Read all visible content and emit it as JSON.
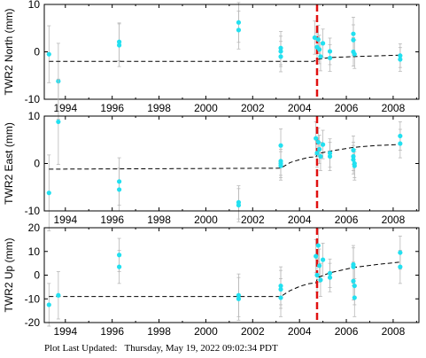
{
  "footer": "Plot Last Updated:   Thursday, May 19, 2022 09:02:34 PDT",
  "colors": {
    "points": "#22e0f0",
    "errorbar": "#b8b8b8",
    "model": "#000000",
    "event": "#e01010",
    "axes": "#000000"
  },
  "chart_data": [
    {
      "type": "scatter",
      "ylabel": "TWR2 North (mm)",
      "xlim": [
        1993.1,
        2009.1
      ],
      "ylim": [
        -10,
        10
      ],
      "xticks": [
        1994,
        1996,
        1998,
        2000,
        2002,
        2004,
        2006,
        2008
      ],
      "yticks": [
        -10,
        0,
        10
      ],
      "event_x": 2004.75,
      "points": [
        {
          "x": 1993.3,
          "y": -0.5,
          "err": 6
        },
        {
          "x": 1993.7,
          "y": -6.2,
          "err": 8
        },
        {
          "x": 1996.3,
          "y": 1.4,
          "err": 4.5
        },
        {
          "x": 1996.3,
          "y": 2.1,
          "err": 4
        },
        {
          "x": 2001.4,
          "y": 6.2,
          "err": 4.2
        },
        {
          "x": 2001.4,
          "y": 4.6,
          "err": 4
        },
        {
          "x": 2003.2,
          "y": 0.8,
          "err": 3.5
        },
        {
          "x": 2003.2,
          "y": -1.0,
          "err": 3.2
        },
        {
          "x": 2003.2,
          "y": 0.1,
          "err": 3.2
        },
        {
          "x": 2004.65,
          "y": 3.0,
          "err": 3.5
        },
        {
          "x": 2004.8,
          "y": 2.6,
          "err": 3
        },
        {
          "x": 2004.85,
          "y": 0.5,
          "err": 3
        },
        {
          "x": 2004.9,
          "y": -1.0,
          "err": 3
        },
        {
          "x": 2005.0,
          "y": 1.8,
          "err": 3
        },
        {
          "x": 2004.75,
          "y": 1.0,
          "err": 3
        },
        {
          "x": 2005.3,
          "y": 0.1,
          "err": 2.8
        },
        {
          "x": 2005.3,
          "y": -1.3,
          "err": 2.8
        },
        {
          "x": 2006.3,
          "y": 3.8,
          "err": 3.5
        },
        {
          "x": 2006.3,
          "y": 2.5,
          "err": 3.2
        },
        {
          "x": 2006.3,
          "y": 0.0,
          "err": 3
        },
        {
          "x": 2006.35,
          "y": -0.5,
          "err": 3
        },
        {
          "x": 2008.3,
          "y": -0.8,
          "err": 2.5
        },
        {
          "x": 2008.3,
          "y": -1.6,
          "err": 2.5
        }
      ],
      "model": [
        [
          1993.3,
          -2.0
        ],
        [
          2004.6,
          -2.0
        ],
        [
          2004.75,
          -1.6
        ],
        [
          2005.3,
          -1.2
        ],
        [
          2006.3,
          -1.0
        ],
        [
          2008.3,
          -0.7
        ]
      ]
    },
    {
      "type": "scatter",
      "ylabel": "TWR2 East (mm)",
      "xlim": [
        1993.1,
        2009.1
      ],
      "ylim": [
        -10,
        10
      ],
      "xticks": [
        1994,
        1996,
        1998,
        2000,
        2002,
        2004,
        2006,
        2008
      ],
      "yticks": [
        -10,
        0,
        10
      ],
      "event_x": 2004.75,
      "points": [
        {
          "x": 1993.3,
          "y": -6.2,
          "err": 8
        },
        {
          "x": 1993.7,
          "y": 8.8,
          "err": 9
        },
        {
          "x": 1996.3,
          "y": -3.8,
          "err": 5
        },
        {
          "x": 1996.3,
          "y": -5.5,
          "err": 4.5
        },
        {
          "x": 2001.4,
          "y": -8.2,
          "err": 3.5
        },
        {
          "x": 2001.4,
          "y": -8.8,
          "err": 3.5
        },
        {
          "x": 2003.2,
          "y": 3.8,
          "err": 3.5
        },
        {
          "x": 2003.2,
          "y": 0.5,
          "err": 3
        },
        {
          "x": 2003.2,
          "y": -0.5,
          "err": 3
        },
        {
          "x": 2003.2,
          "y": 0.0,
          "err": 3
        },
        {
          "x": 2004.7,
          "y": 5.3,
          "err": 3.5
        },
        {
          "x": 2004.8,
          "y": 4.5,
          "err": 3
        },
        {
          "x": 2004.85,
          "y": 3.0,
          "err": 3
        },
        {
          "x": 2004.9,
          "y": 1.5,
          "err": 3
        },
        {
          "x": 2005.0,
          "y": 4.0,
          "err": 3
        },
        {
          "x": 2004.75,
          "y": 2.2,
          "err": 3
        },
        {
          "x": 2005.3,
          "y": 2.2,
          "err": 3
        },
        {
          "x": 2005.3,
          "y": 1.5,
          "err": 3
        },
        {
          "x": 2006.3,
          "y": 2.8,
          "err": 3
        },
        {
          "x": 2006.3,
          "y": 1.5,
          "err": 3
        },
        {
          "x": 2006.3,
          "y": 0.8,
          "err": 3
        },
        {
          "x": 2006.35,
          "y": -0.5,
          "err": 3
        },
        {
          "x": 2006.35,
          "y": 0.0,
          "err": 3
        },
        {
          "x": 2008.3,
          "y": 5.8,
          "err": 3
        },
        {
          "x": 2008.3,
          "y": 4.2,
          "err": 3
        }
      ],
      "model": [
        [
          1993.3,
          -1.2
        ],
        [
          2003.2,
          -1.0
        ],
        [
          2003.6,
          0.2
        ],
        [
          2004.0,
          0.8
        ],
        [
          2004.4,
          1.3
        ],
        [
          2004.7,
          1.4
        ],
        [
          2004.78,
          2.1
        ],
        [
          2005.3,
          2.6
        ],
        [
          2006.3,
          3.4
        ],
        [
          2007.3,
          3.8
        ],
        [
          2008.3,
          4.0
        ]
      ]
    },
    {
      "type": "scatter",
      "ylabel": "TWR2 Up (mm)",
      "xlim": [
        1993.1,
        2009.1
      ],
      "ylim": [
        -20,
        20
      ],
      "xticks": [
        1994,
        1996,
        1998,
        2000,
        2002,
        2004,
        2006,
        2008
      ],
      "yticks": [
        -20,
        -10,
        0,
        10,
        20
      ],
      "event_x": 2004.75,
      "points": [
        {
          "x": 1993.3,
          "y": -12.5,
          "err": 9
        },
        {
          "x": 1993.7,
          "y": -8.5,
          "err": 10
        },
        {
          "x": 1996.3,
          "y": 8.5,
          "err": 7
        },
        {
          "x": 1996.3,
          "y": 3.5,
          "err": 7
        },
        {
          "x": 2001.4,
          "y": -8.5,
          "err": 9
        },
        {
          "x": 2001.4,
          "y": -10.0,
          "err": 9
        },
        {
          "x": 2003.2,
          "y": -4.5,
          "err": 8
        },
        {
          "x": 2003.2,
          "y": -6.0,
          "err": 8
        },
        {
          "x": 2003.2,
          "y": -9.5,
          "err": 8
        },
        {
          "x": 2004.7,
          "y": 8.0,
          "err": 7
        },
        {
          "x": 2004.8,
          "y": 12.5,
          "err": 7
        },
        {
          "x": 2004.85,
          "y": 4.0,
          "err": 7
        },
        {
          "x": 2004.9,
          "y": -2.0,
          "err": 7
        },
        {
          "x": 2005.0,
          "y": 6.5,
          "err": 7
        },
        {
          "x": 2004.75,
          "y": 0.0,
          "err": 7
        },
        {
          "x": 2005.3,
          "y": 0.8,
          "err": 6
        },
        {
          "x": 2005.3,
          "y": -1.0,
          "err": 6
        },
        {
          "x": 2006.3,
          "y": 4.5,
          "err": 8
        },
        {
          "x": 2006.3,
          "y": 3.5,
          "err": 8
        },
        {
          "x": 2006.3,
          "y": -2.5,
          "err": 8
        },
        {
          "x": 2006.35,
          "y": -9.5,
          "err": 8
        },
        {
          "x": 2006.35,
          "y": -4.5,
          "err": 8
        },
        {
          "x": 2008.3,
          "y": 9.5,
          "err": 7
        },
        {
          "x": 2008.3,
          "y": 3.5,
          "err": 7
        }
      ],
      "model": [
        [
          1993.3,
          -9.0
        ],
        [
          2003.2,
          -9.0
        ],
        [
          2003.6,
          -6.5
        ],
        [
          2004.0,
          -4.8
        ],
        [
          2004.4,
          -3.6
        ],
        [
          2004.7,
          -3.2
        ],
        [
          2004.78,
          -1.0
        ],
        [
          2005.3,
          1.0
        ],
        [
          2006.3,
          3.2
        ],
        [
          2007.3,
          4.5
        ],
        [
          2008.3,
          5.5
        ]
      ]
    }
  ]
}
